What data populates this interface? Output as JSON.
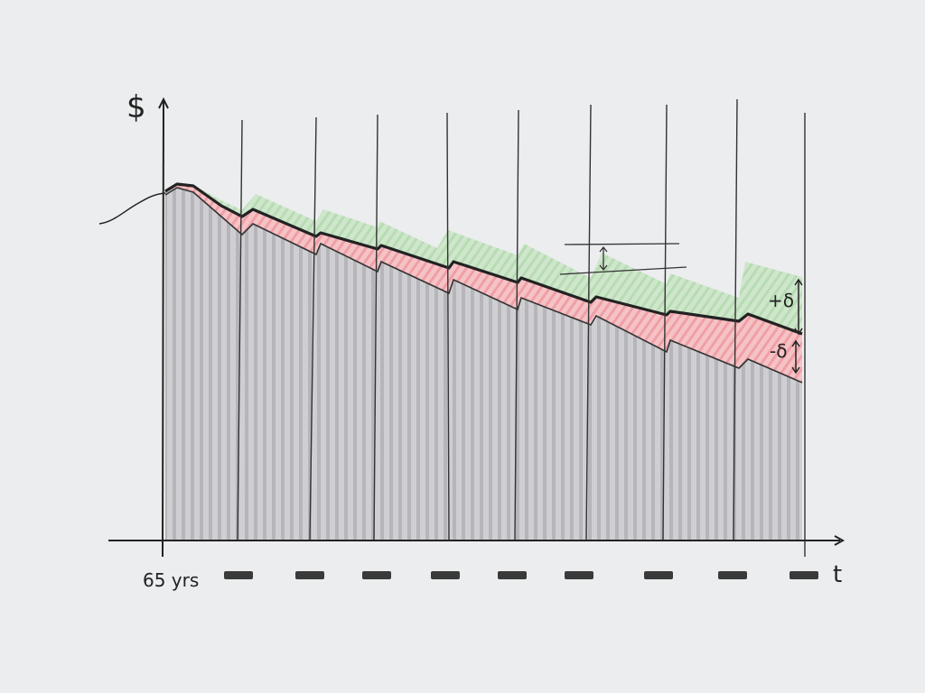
{
  "diagram": {
    "y_axis_label": "$",
    "x_axis_label": "t",
    "start_label": "65 yrs",
    "band_upper_label": "+δ",
    "band_lower_label": "-δ",
    "period_markers": 9,
    "colors": {
      "background": "#ecedef",
      "ink": "#222222",
      "area_fill": "#c9c9cd",
      "area_stripe": "#b3b3b8",
      "upper_band": "#bfe0bc",
      "lower_band": "#f2b3b8",
      "marker": "#3a3a3a"
    }
  }
}
